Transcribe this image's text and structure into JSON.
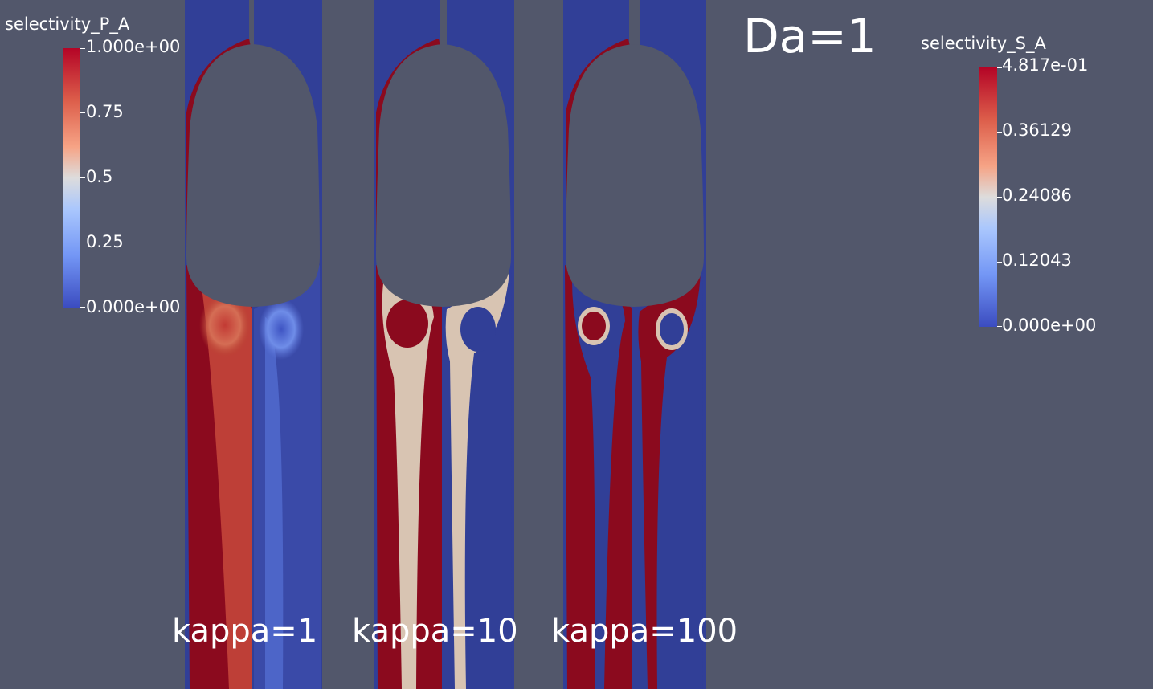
{
  "header": {
    "title": "Da=1"
  },
  "colorbar_left": {
    "title": "selectivity_P_A",
    "ticks": [
      "1.000e+00",
      "0.75",
      "0.5",
      "0.25",
      "0.000e+00"
    ]
  },
  "colorbar_right": {
    "title": "selectivity_S_A",
    "ticks": [
      "4.817e-01",
      "0.36129",
      "0.24086",
      "0.12043",
      "0.000e+00"
    ]
  },
  "panels": [
    {
      "label": "kappa=1"
    },
    {
      "label": "kappa=10"
    },
    {
      "label": "kappa=100"
    }
  ],
  "colors": {
    "background": "#52576b",
    "high": "#8b0a1e",
    "low": "#313f97",
    "mid": "#d8c4b2",
    "text": "#ffffff"
  }
}
